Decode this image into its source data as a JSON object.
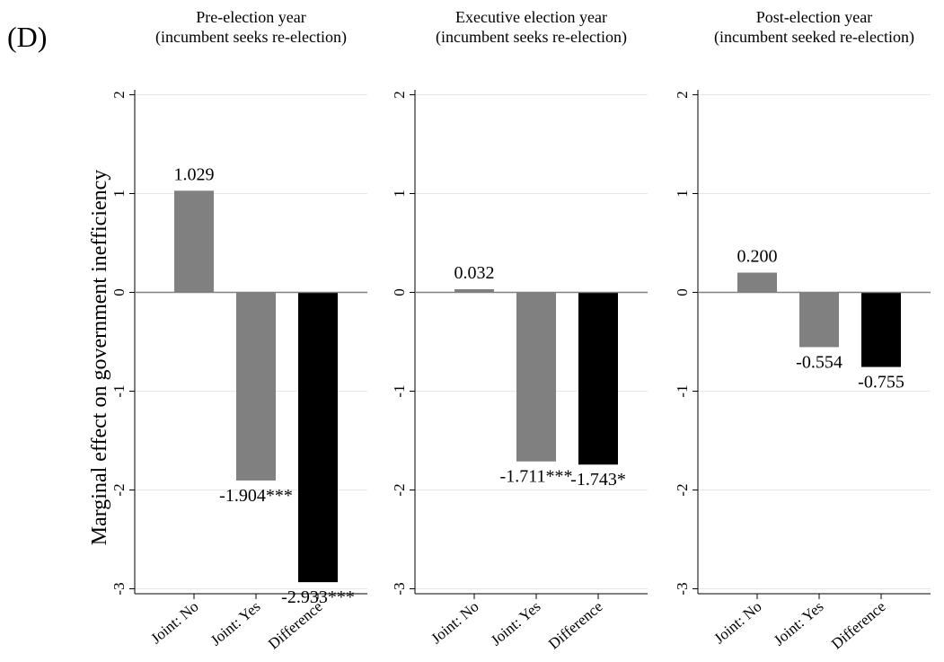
{
  "chart_data": {
    "type": "bar",
    "panel_label": "(D)",
    "ylabel": "Marginal effect on government inefficiency",
    "ylim": [
      -3.05,
      2.05
    ],
    "yticks": [
      2,
      1,
      0,
      -1,
      -2,
      -3
    ],
    "grid": true,
    "colors": {
      "joint": "#808080",
      "difference": "#000000",
      "grid": "#e6e6e6",
      "axis": "#000000",
      "zero_line": "#808080"
    },
    "panels": [
      {
        "title_line1": "Pre-election year",
        "title_line2": "(incumbent seeks re-election)",
        "categories": [
          "Joint: No",
          "Joint: Yes",
          "Difference"
        ],
        "values": [
          1.029,
          -1.904,
          -2.933
        ],
        "labels": [
          "1.029",
          "-1.904***",
          "-2.933***"
        ]
      },
      {
        "title_line1": "Executive election year",
        "title_line2": "(incumbent seeks re-election)",
        "categories": [
          "Joint: No",
          "Joint: Yes",
          "Difference"
        ],
        "values": [
          0.032,
          -1.711,
          -1.743
        ],
        "labels": [
          "0.032",
          "-1.711***",
          "-1.743*"
        ]
      },
      {
        "title_line1": "Post-election year",
        "title_line2": "(incumbent seeked re-election)",
        "categories": [
          "Joint: No",
          "Joint: Yes",
          "Difference"
        ],
        "values": [
          0.2,
          -0.554,
          -0.755
        ],
        "labels": [
          "0.200",
          "-0.554",
          "-0.755"
        ]
      }
    ]
  }
}
